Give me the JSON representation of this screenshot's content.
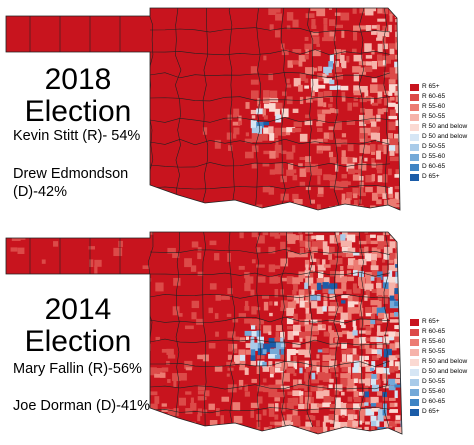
{
  "maps": [
    {
      "year": "2018",
      "heading": "Election",
      "candidates": [
        "Kevin Stitt (R)- 54%",
        "Drew Edmondson",
        "(D)-42%"
      ],
      "swing": 0.1
    },
    {
      "year": "2014",
      "heading": "Election",
      "candidates": [
        "Mary Fallin (R)-56%",
        "Joe Dorman (D)-41%"
      ],
      "swing": 0.55
    }
  ],
  "legend": [
    {
      "label": "R 65+",
      "color": "#c8141e"
    },
    {
      "label": "R 60-65",
      "color": "#dc4a48"
    },
    {
      "label": "R 55-60",
      "color": "#ec7b72"
    },
    {
      "label": "R 50-55",
      "color": "#f6b3aa"
    },
    {
      "label": "R 50 and below",
      "color": "#fbd9d2"
    },
    {
      "label": "D 50 and below",
      "color": "#d6e6f5"
    },
    {
      "label": "D 50-55",
      "color": "#a9cbe9"
    },
    {
      "label": "D 55-60",
      "color": "#74a9d8"
    },
    {
      "label": "D 60-65",
      "color": "#3f84c4"
    },
    {
      "label": "D 65+",
      "color": "#1b5ca8"
    }
  ]
}
